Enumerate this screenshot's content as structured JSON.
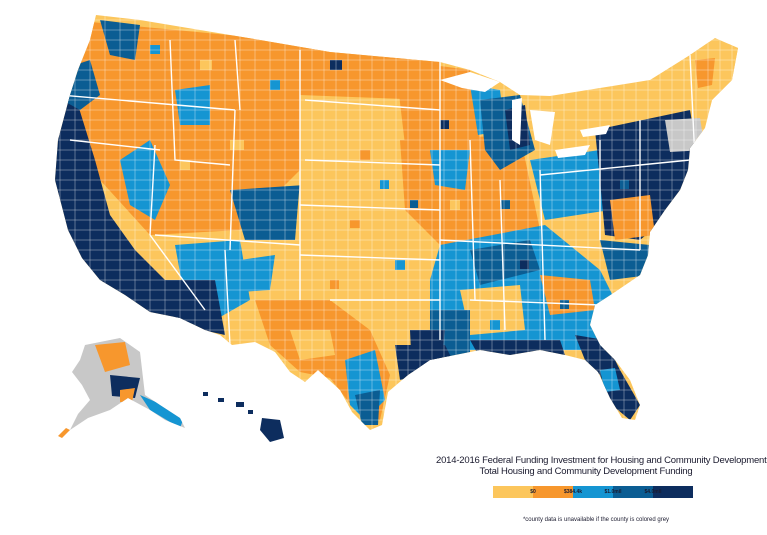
{
  "legend": {
    "title": "2014-2016 Federal Funding Investment for Housing and Community Development",
    "subtitle": "Total Housing and Community Development Funding",
    "note": "*county data is unavailable if the county is colored grey",
    "colors": [
      "#fcc65c",
      "#f7972d",
      "#1595d2",
      "#0b5d93",
      "#0d2d5e"
    ],
    "unavailable_color": "#c8c8c8",
    "ticks": [
      "$0",
      "$384.4k",
      "$1.0mil",
      "$4.0mil"
    ]
  }
}
